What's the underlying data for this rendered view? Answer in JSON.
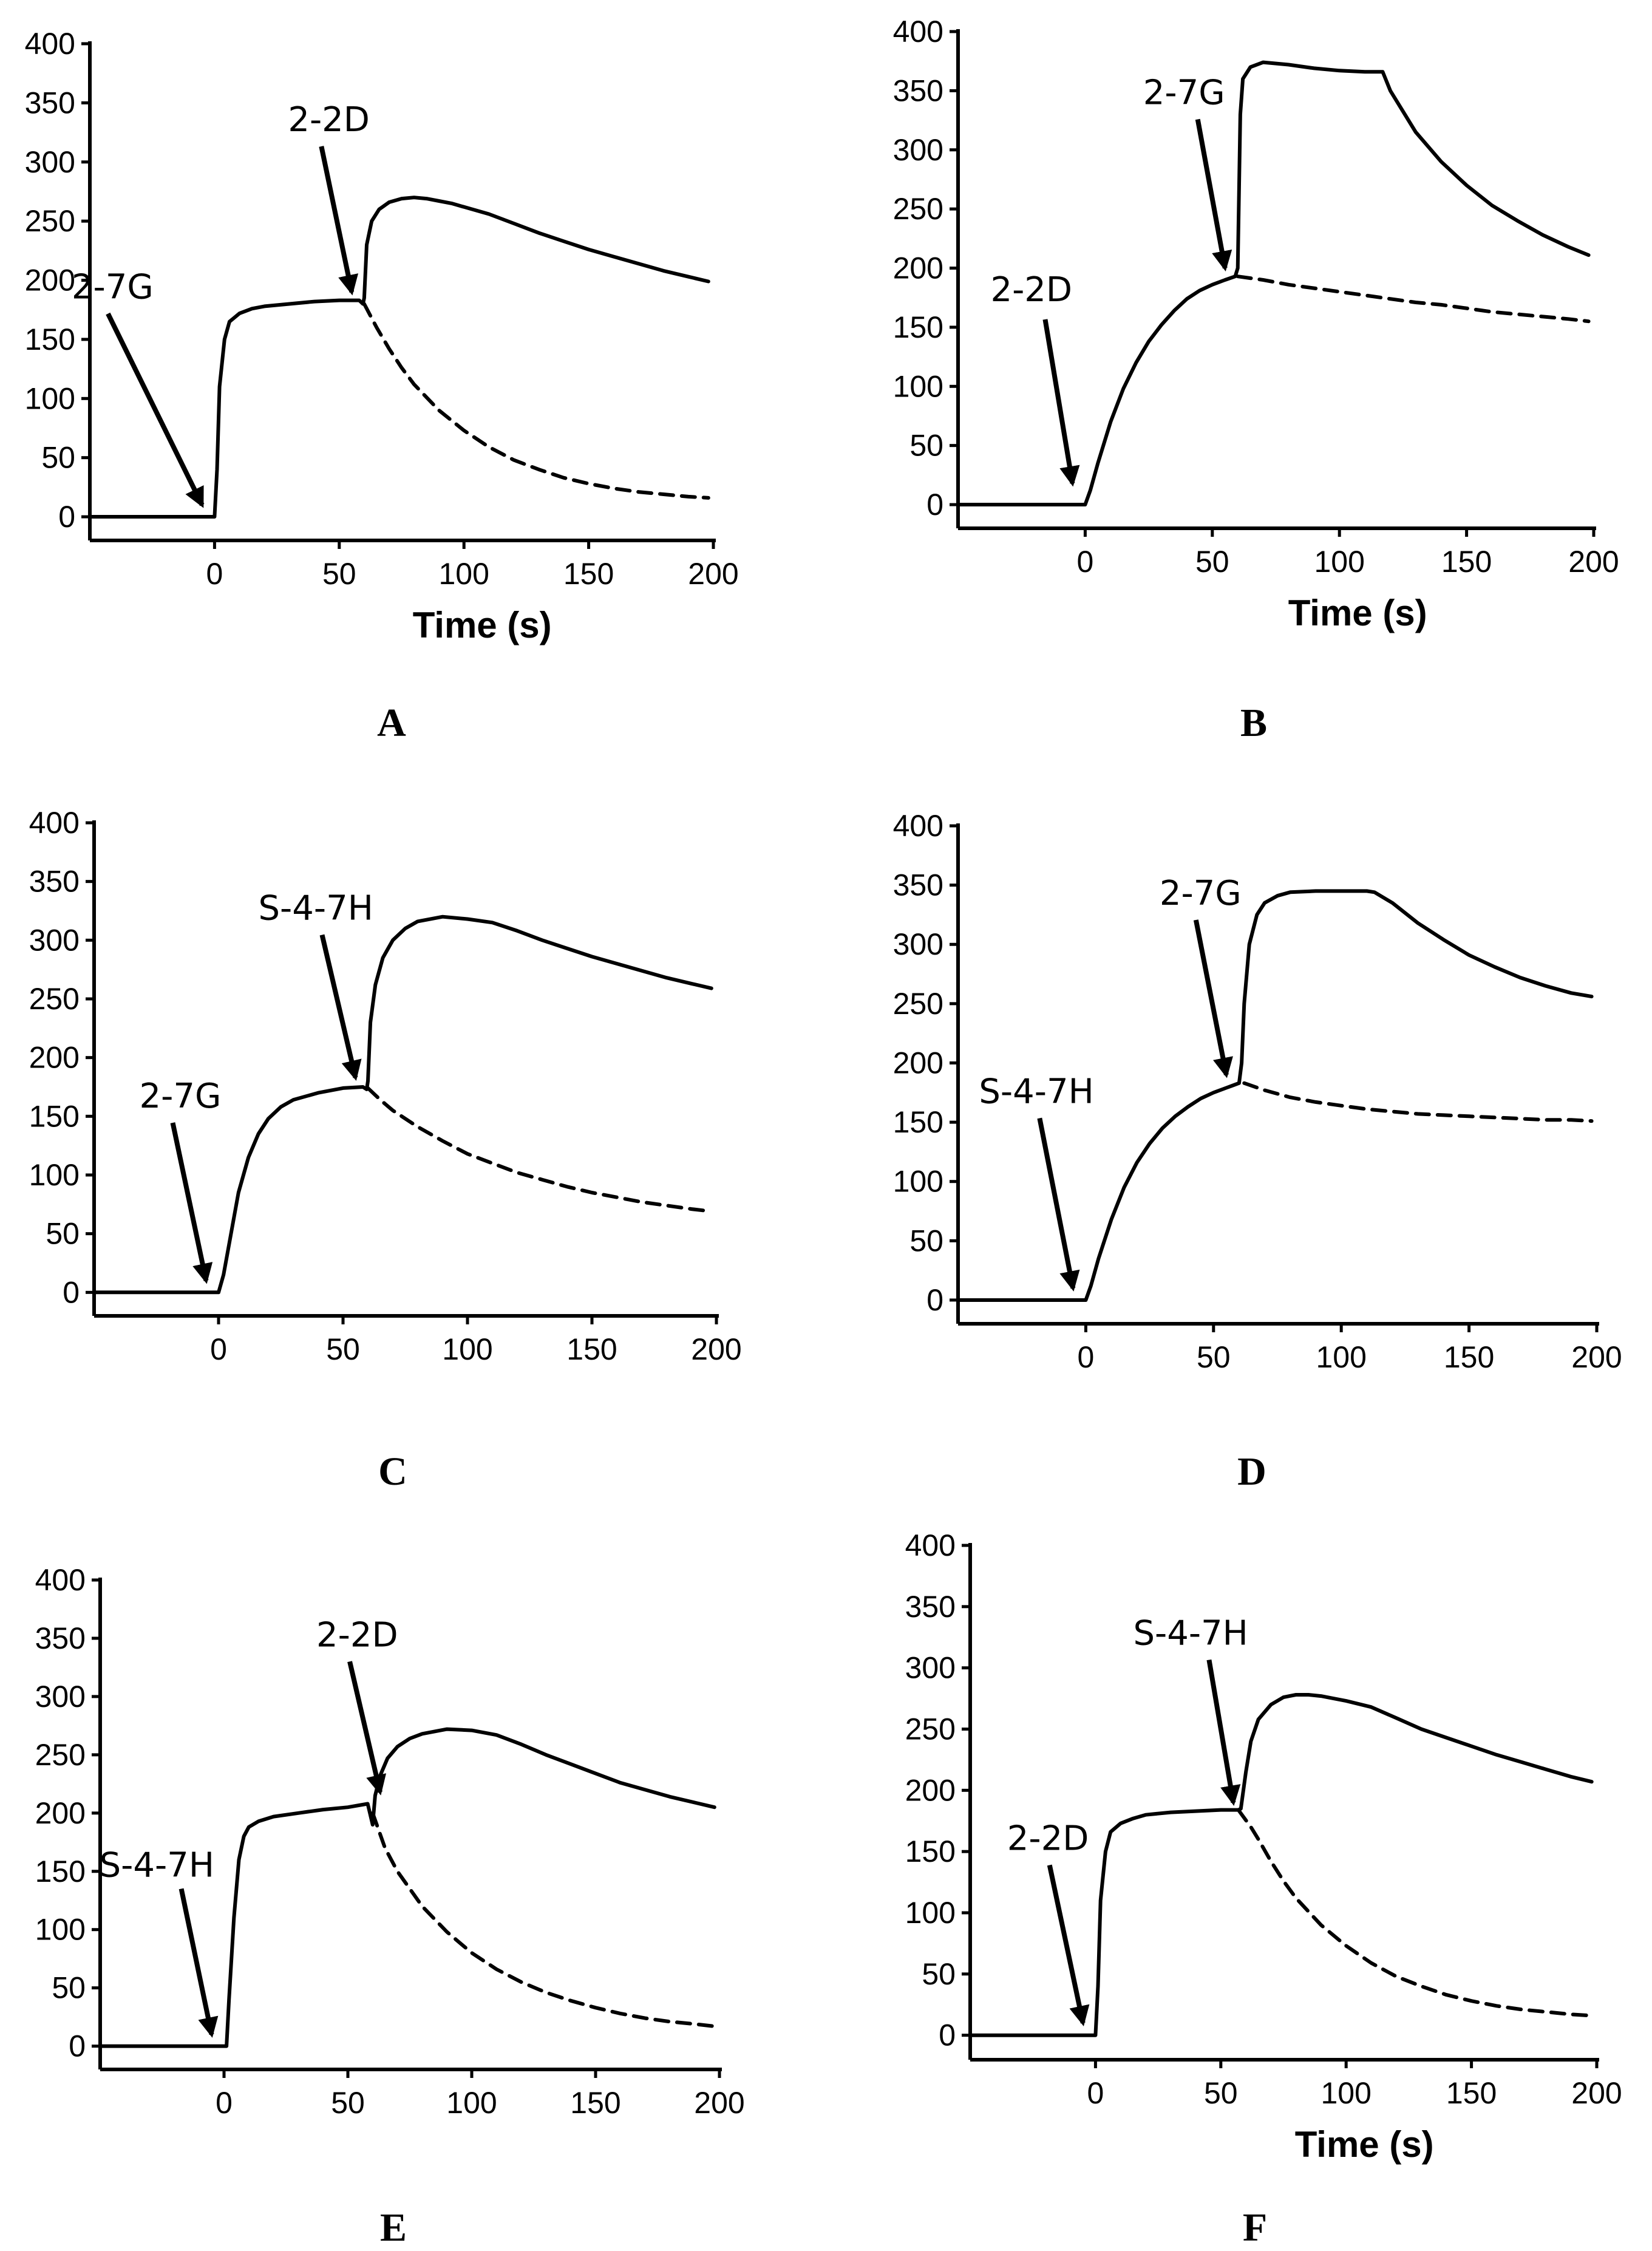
{
  "chart_data": [
    {
      "type": "line",
      "panel_label": "A",
      "xlabel": "Time (s)",
      "ylabel": "",
      "xlim": [
        -50,
        200
      ],
      "ylim": [
        -20,
        400
      ],
      "x_ticks": [
        0,
        50,
        100,
        150,
        200
      ],
      "y_ticks": [
        0,
        50,
        100,
        150,
        200,
        250,
        300,
        350,
        400
      ],
      "series": [
        {
          "name": "solid",
          "style": "solid",
          "x": [
            -50,
            -1,
            0,
            1,
            2,
            4,
            6,
            10,
            15,
            20,
            30,
            40,
            50,
            58,
            59.5,
            60,
            61,
            63,
            66,
            70,
            75,
            80,
            85,
            90,
            95,
            100,
            110,
            120,
            130,
            140,
            150,
            160,
            170,
            180,
            190,
            198
          ],
          "y": [
            0,
            0,
            0,
            40,
            110,
            150,
            165,
            172,
            176,
            178,
            180,
            182,
            183,
            183,
            180,
            185,
            230,
            250,
            260,
            266,
            269,
            270,
            269,
            267,
            265,
            262,
            256,
            248,
            240,
            233,
            226,
            220,
            214,
            208,
            203,
            199
          ]
        },
        {
          "name": "dashed",
          "style": "dashed",
          "x": [
            60,
            62,
            65,
            70,
            75,
            80,
            90,
            100,
            110,
            120,
            130,
            140,
            150,
            160,
            170,
            180,
            190,
            198
          ],
          "y": [
            180,
            172,
            160,
            142,
            126,
            112,
            90,
            73,
            59,
            48,
            40,
            33,
            28,
            24,
            21,
            19,
            17,
            16
          ]
        }
      ],
      "annotations": [
        {
          "text": "2-7G",
          "x": -5,
          "y": 10
        },
        {
          "text": "2-2D",
          "x": 55,
          "y": 190
        }
      ]
    },
    {
      "type": "line",
      "panel_label": "B",
      "xlabel": "Time (s)",
      "ylabel": "",
      "xlim": [
        -50,
        200
      ],
      "ylim": [
        -20,
        400
      ],
      "x_ticks": [
        0,
        50,
        100,
        150,
        200
      ],
      "y_ticks": [
        0,
        50,
        100,
        150,
        200,
        250,
        300,
        350,
        400
      ],
      "series": [
        {
          "name": "solid",
          "style": "solid",
          "x": [
            -50,
            -1,
            0,
            2,
            5,
            10,
            15,
            20,
            25,
            30,
            35,
            40,
            45,
            50,
            55,
            59,
            60,
            61,
            62,
            65,
            70,
            80,
            90,
            100,
            110,
            117,
            120,
            130,
            140,
            150,
            160,
            170,
            180,
            190,
            198
          ],
          "y": [
            0,
            0,
            0,
            12,
            35,
            70,
            98,
            120,
            138,
            152,
            164,
            174,
            181,
            186,
            190,
            193,
            200,
            330,
            360,
            370,
            374,
            372,
            369,
            367,
            366,
            366,
            350,
            315,
            290,
            270,
            253,
            240,
            228,
            218,
            211
          ]
        },
        {
          "name": "dashed",
          "style": "dashed",
          "x": [
            60,
            70,
            80,
            90,
            100,
            110,
            120,
            130,
            140,
            150,
            160,
            170,
            180,
            190,
            198
          ],
          "y": [
            193,
            190,
            186,
            183,
            180,
            177,
            174,
            171,
            169,
            166,
            163,
            161,
            159,
            157,
            155
          ]
        }
      ],
      "annotations": [
        {
          "text": "2-2D",
          "x": -5,
          "y": 18
        },
        {
          "text": "2-7G",
          "x": 55,
          "y": 200
        }
      ]
    },
    {
      "type": "line",
      "panel_label": "C",
      "xlabel": "",
      "ylabel": "",
      "xlim": [
        -50,
        200
      ],
      "ylim": [
        -20,
        400
      ],
      "x_ticks": [
        0,
        50,
        100,
        150,
        200
      ],
      "y_ticks": [
        0,
        50,
        100,
        150,
        200,
        250,
        300,
        350,
        400
      ],
      "series": [
        {
          "name": "solid",
          "style": "solid",
          "x": [
            -50,
            -1,
            0,
            2,
            5,
            8,
            12,
            16,
            20,
            25,
            30,
            40,
            50,
            58,
            59.5,
            60,
            61,
            63,
            66,
            70,
            75,
            80,
            90,
            100,
            110,
            120,
            130,
            140,
            150,
            160,
            170,
            180,
            190,
            198
          ],
          "y": [
            0,
            0,
            0,
            15,
            50,
            85,
            115,
            135,
            148,
            158,
            164,
            170,
            174,
            175,
            173,
            180,
            230,
            262,
            285,
            300,
            310,
            316,
            320,
            318,
            315,
            308,
            300,
            293,
            286,
            280,
            274,
            268,
            263,
            259
          ]
        },
        {
          "name": "dashed",
          "style": "dashed",
          "x": [
            60,
            65,
            70,
            80,
            90,
            100,
            110,
            120,
            130,
            140,
            150,
            160,
            170,
            180,
            190,
            198
          ],
          "y": [
            174,
            164,
            155,
            141,
            129,
            118,
            110,
            102,
            96,
            90,
            85,
            81,
            77,
            74,
            71,
            69
          ]
        }
      ],
      "annotations": [
        {
          "text": "2-7G",
          "x": -5,
          "y": 10
        },
        {
          "text": "S-4-7H",
          "x": 55,
          "y": 183
        }
      ]
    },
    {
      "type": "line",
      "panel_label": "D",
      "xlabel": "",
      "ylabel": "",
      "xlim": [
        -50,
        200
      ],
      "ylim": [
        -20,
        400
      ],
      "x_ticks": [
        0,
        50,
        100,
        150,
        200
      ],
      "y_ticks": [
        0,
        50,
        100,
        150,
        200,
        250,
        300,
        350,
        400
      ],
      "series": [
        {
          "name": "solid",
          "style": "solid",
          "x": [
            -50,
            -1,
            0,
            2,
            5,
            10,
            15,
            20,
            25,
            30,
            35,
            40,
            45,
            50,
            55,
            60,
            61,
            62,
            64,
            67,
            70,
            75,
            80,
            90,
            100,
            110,
            113,
            120,
            130,
            140,
            150,
            160,
            170,
            180,
            190,
            198
          ],
          "y": [
            0,
            0,
            0,
            12,
            35,
            68,
            95,
            116,
            132,
            145,
            155,
            163,
            170,
            175,
            179,
            183,
            200,
            250,
            300,
            325,
            335,
            341,
            344,
            345,
            345,
            345,
            344,
            335,
            318,
            304,
            291,
            281,
            272,
            265,
            259,
            256
          ]
        },
        {
          "name": "dashed",
          "style": "dashed",
          "x": [
            62,
            70,
            80,
            90,
            100,
            110,
            120,
            130,
            140,
            150,
            160,
            170,
            180,
            190,
            198
          ],
          "y": [
            183,
            177,
            171,
            167,
            164,
            161,
            159,
            157,
            156,
            155,
            154,
            153,
            152,
            152,
            151
          ]
        }
      ],
      "annotations": [
        {
          "text": "S-4-7H",
          "x": -5,
          "y": 10
        },
        {
          "text": "2-7G",
          "x": 55,
          "y": 190
        }
      ]
    },
    {
      "type": "line",
      "panel_label": "E",
      "xlabel": "",
      "ylabel": "",
      "xlim": [
        -50,
        200
      ],
      "ylim": [
        -20,
        400
      ],
      "x_ticks": [
        0,
        50,
        100,
        150,
        200
      ],
      "y_ticks": [
        0,
        50,
        100,
        150,
        200,
        250,
        300,
        350,
        400
      ],
      "series": [
        {
          "name": "solid",
          "style": "solid",
          "x": [
            -50,
            1,
            2,
            4,
            6,
            8,
            10,
            14,
            20,
            30,
            40,
            50,
            58,
            60,
            61,
            63,
            66,
            70,
            75,
            80,
            90,
            100,
            110,
            120,
            130,
            140,
            150,
            160,
            170,
            180,
            190,
            198
          ],
          "y": [
            0,
            0,
            40,
            110,
            160,
            180,
            188,
            193,
            197,
            200,
            203,
            205,
            208,
            190,
            215,
            232,
            247,
            257,
            264,
            268,
            272,
            271,
            267,
            259,
            250,
            242,
            234,
            226,
            220,
            214,
            209,
            205
          ]
        },
        {
          "name": "dashed",
          "style": "dashed",
          "x": [
            60,
            65,
            70,
            80,
            90,
            100,
            110,
            120,
            130,
            140,
            150,
            160,
            170,
            180,
            190,
            198
          ],
          "y": [
            200,
            170,
            150,
            120,
            98,
            80,
            66,
            55,
            46,
            39,
            33,
            28,
            24,
            21,
            19,
            17
          ]
        }
      ],
      "annotations": [
        {
          "text": "S-4-7H",
          "x": -5,
          "y": 10
        },
        {
          "text": "2-2D",
          "x": 63,
          "y": 218
        }
      ]
    },
    {
      "type": "line",
      "panel_label": "F",
      "xlabel": "Time (s)",
      "ylabel": "",
      "xlim": [
        -50,
        200
      ],
      "ylim": [
        -20,
        400
      ],
      "x_ticks": [
        0,
        50,
        100,
        150,
        200
      ],
      "y_ticks": [
        0,
        50,
        100,
        150,
        200,
        250,
        300,
        350,
        400
      ],
      "series": [
        {
          "name": "solid",
          "style": "solid",
          "x": [
            -50,
            -1,
            0,
            1,
            2,
            4,
            6,
            10,
            15,
            20,
            30,
            40,
            50,
            57,
            58,
            60,
            62,
            65,
            70,
            75,
            80,
            85,
            90,
            100,
            110,
            120,
            130,
            140,
            150,
            160,
            170,
            180,
            190,
            198
          ],
          "y": [
            0,
            0,
            0,
            40,
            110,
            150,
            166,
            173,
            177,
            180,
            182,
            183,
            184,
            184,
            185,
            215,
            240,
            258,
            270,
            276,
            278,
            278,
            277,
            273,
            268,
            259,
            250,
            243,
            236,
            229,
            223,
            217,
            211,
            207
          ]
        },
        {
          "name": "dashed",
          "style": "dashed",
          "x": [
            57,
            62,
            65,
            70,
            75,
            80,
            90,
            100,
            110,
            120,
            130,
            140,
            150,
            160,
            170,
            180,
            190,
            198
          ],
          "y": [
            184,
            170,
            160,
            142,
            126,
            112,
            90,
            73,
            59,
            48,
            40,
            33,
            28,
            24,
            21,
            19,
            17,
            16
          ]
        }
      ],
      "annotations": [
        {
          "text": "2-2D",
          "x": -5,
          "y": 10
        },
        {
          "text": "S-4-7H",
          "x": 55,
          "y": 190
        }
      ]
    }
  ]
}
